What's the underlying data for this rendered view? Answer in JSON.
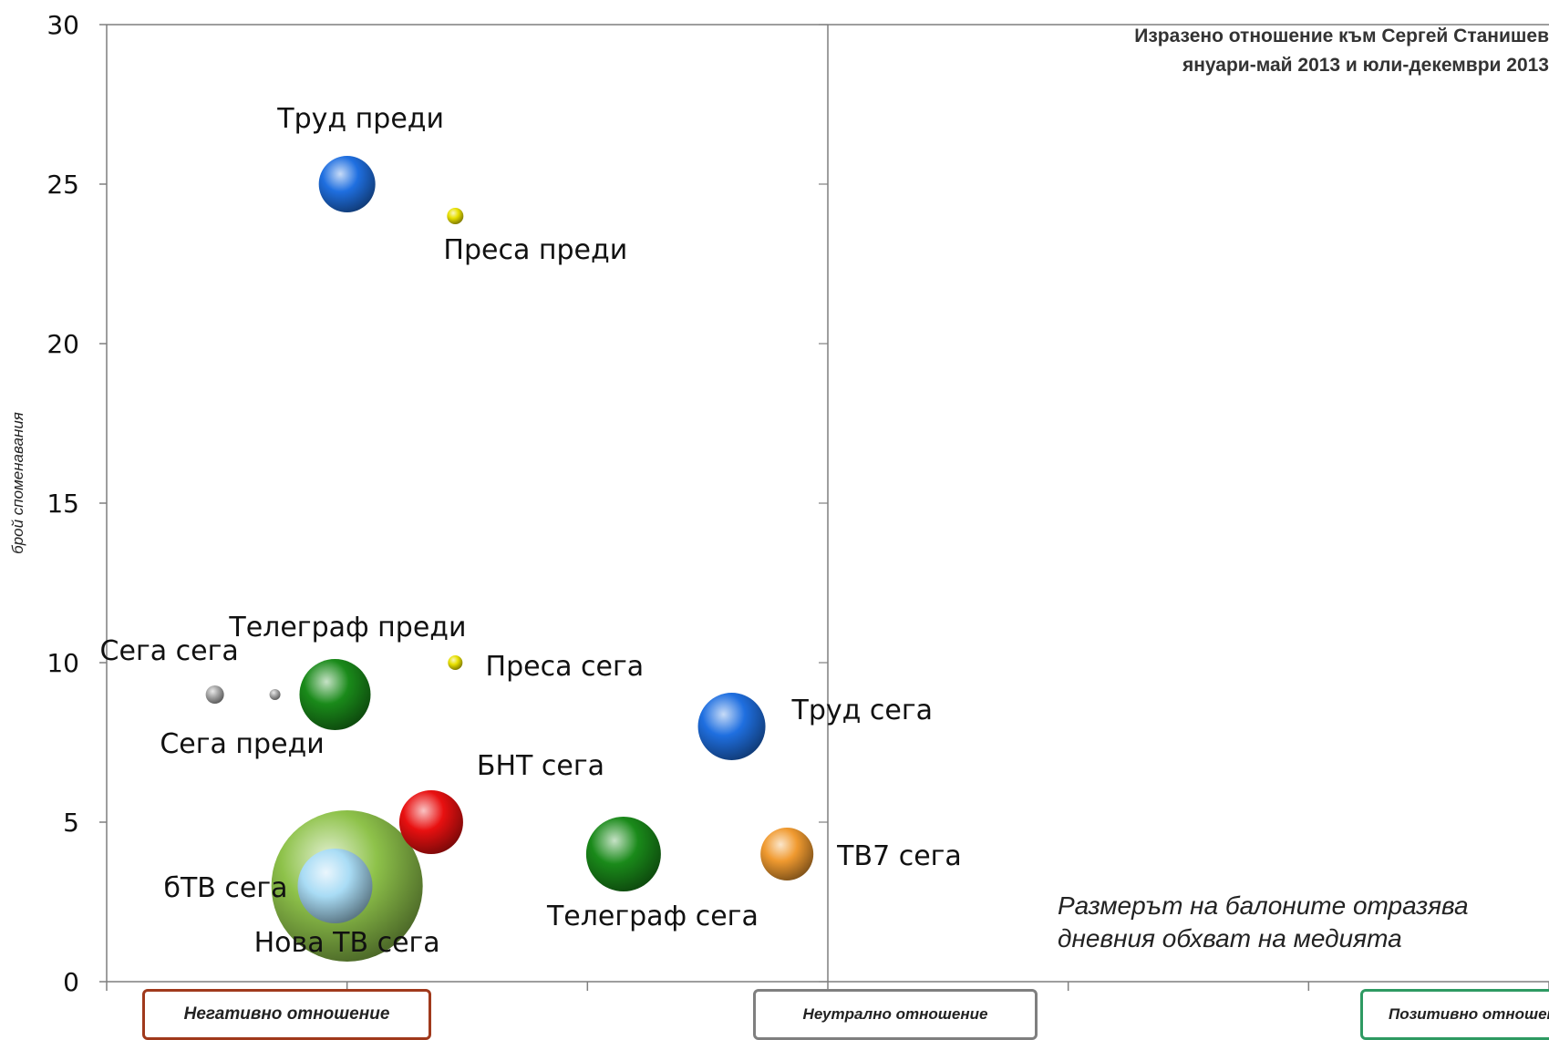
{
  "chart_data": {
    "type": "bubble",
    "title": [
      "Изразено отношение към  Сергей Станишев",
      "януари-май 2013 и юли-декември 2013"
    ],
    "xlabel": "",
    "ylabel": "брой споменавания",
    "ylim": [
      0,
      30
    ],
    "xlim": [
      -3,
      3
    ],
    "y_ticks": [
      "0",
      "5",
      "10",
      "15",
      "20",
      "25",
      "30"
    ],
    "x_categories": [
      "Негативно отношение",
      "Неутрално отношение",
      "Позитивно отношение"
    ],
    "note": "Размерът на балоните отразява дневния обхват на медията",
    "grid": false,
    "points": [
      {
        "label": "Труд преди",
        "x": -2.0,
        "y": 25,
        "size": 28,
        "color": "#1f6fe0"
      },
      {
        "label": "Преса преди",
        "x": -1.55,
        "y": 24,
        "size": 6,
        "color": "#e8e000"
      },
      {
        "label": "Сега сега",
        "x": -2.55,
        "y": 9,
        "size": 7,
        "color": "#a6a6a6"
      },
      {
        "label": "Сега преди",
        "x": -2.3,
        "y": 9,
        "size": 3,
        "color": "#a6a6a6"
      },
      {
        "label": "Телеграф преди",
        "x": -2.05,
        "y": 9,
        "size": 36,
        "color": "#1a8a1a"
      },
      {
        "label": "Преса сега",
        "x": -1.55,
        "y": 10,
        "size": 5,
        "color": "#e8e000"
      },
      {
        "label": "Труд сега",
        "x": -0.4,
        "y": 8,
        "size": 34,
        "color": "#1f6fe0"
      },
      {
        "label": "БНТ сега",
        "x": -1.65,
        "y": 5,
        "size": 32,
        "color": "#e81010"
      },
      {
        "label": "Нова ТВ сега",
        "x": -2.0,
        "y": 3,
        "size": 80,
        "color": "#8ec24a"
      },
      {
        "label": "бТВ сега",
        "x": -2.05,
        "y": 3,
        "size": 38,
        "color": "#a9dcf5"
      },
      {
        "label": "Телеграф сега",
        "x": -0.85,
        "y": 4,
        "size": 38,
        "color": "#1a8a1a"
      },
      {
        "label": "ТВ7 сега",
        "x": -0.17,
        "y": 4,
        "size": 26,
        "color": "#f09a30"
      }
    ]
  }
}
